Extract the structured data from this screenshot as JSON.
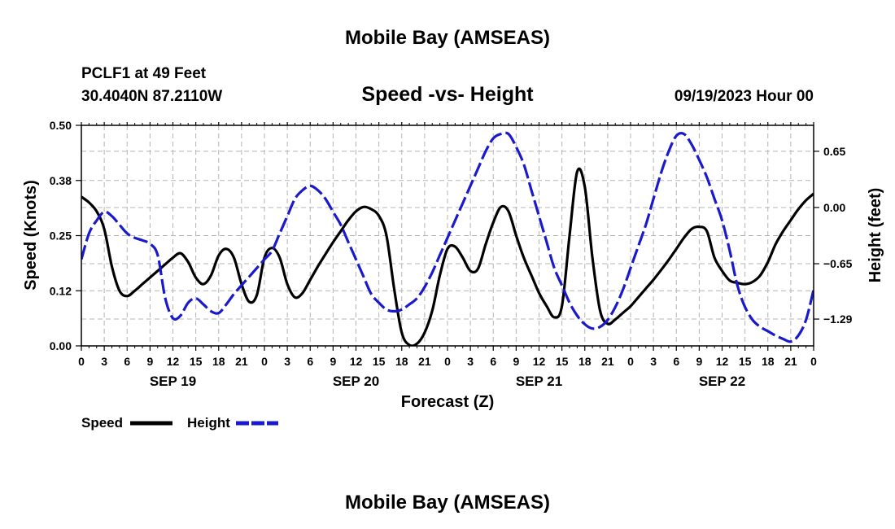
{
  "header": {
    "title": "Mobile Bay (AMSEAS)",
    "station": "PCLF1 at 49 Feet",
    "coords": "30.4040N  87.2110W",
    "chart_title": "Speed -vs- Height",
    "forecast_time": "09/19/2023 Hour 00"
  },
  "footer": {
    "title": "Mobile Bay (AMSEAS)"
  },
  "legend": {
    "speed_label": "Speed",
    "height_label": "Height"
  },
  "colors": {
    "speed": "#000000",
    "height": "#1a1acc",
    "grid": "#b4b4b4"
  },
  "chart_data": {
    "type": "line",
    "title": "Speed -vs- Height",
    "xlabel": "Forecast (Z)",
    "ylabel_left": "Speed (Knots)",
    "ylabel_right": "Height (feet)",
    "xlim": [
      0,
      96
    ],
    "ylim_left": [
      0,
      0.5
    ],
    "ylim_right": [
      -1.6,
      0.95
    ],
    "x_ticks": [
      0,
      3,
      6,
      9,
      12,
      15,
      18,
      21,
      24,
      27,
      30,
      33,
      36,
      39,
      42,
      45,
      48,
      51,
      54,
      57,
      60,
      63,
      66,
      69,
      72,
      75,
      78,
      81,
      84,
      87,
      90,
      93,
      96
    ],
    "x_tick_labels": [
      "0",
      "3",
      "6",
      "9",
      "12",
      "15",
      "18",
      "21",
      "0",
      "3",
      "6",
      "9",
      "12",
      "15",
      "18",
      "21",
      "0",
      "3",
      "6",
      "9",
      "12",
      "15",
      "18",
      "21",
      "0",
      "3",
      "6",
      "9",
      "12",
      "15",
      "18",
      "21",
      "0"
    ],
    "day_labels": [
      {
        "x": 12,
        "label": "SEP 19"
      },
      {
        "x": 36,
        "label": "SEP 20"
      },
      {
        "x": 60,
        "label": "SEP 21"
      },
      {
        "x": 84,
        "label": "SEP 22"
      }
    ],
    "y_left_ticks": [
      0,
      0.125,
      0.25,
      0.375,
      0.5
    ],
    "y_left_labels": [
      "0.00",
      "0.12",
      "0.25",
      "0.38",
      "0.50"
    ],
    "y_right_ticks": [
      0.65,
      0.0,
      -0.65,
      -1.29
    ],
    "y_right_labels": [
      "0.65",
      "0.00",
      "−0.65",
      "−1.29"
    ],
    "grid": true,
    "series": [
      {
        "name": "Speed",
        "axis": "left",
        "style": "solid",
        "x": [
          0,
          1,
          2,
          3,
          4,
          5,
          6,
          7,
          8,
          9,
          10,
          11,
          12,
          13,
          14,
          15,
          16,
          17,
          18,
          19,
          20,
          21,
          22,
          23,
          24,
          25,
          26,
          27,
          28,
          29,
          30,
          31,
          32,
          33,
          34,
          35,
          36,
          37,
          38,
          39,
          40,
          41,
          42,
          43,
          44,
          45,
          46,
          47,
          48,
          49,
          50,
          51,
          52,
          53,
          54,
          55,
          56,
          57,
          58,
          59,
          60,
          61,
          62,
          63,
          64,
          65,
          66,
          67,
          68,
          69,
          70,
          71,
          72,
          73,
          74,
          75,
          76,
          77,
          78,
          79,
          80,
          81,
          82,
          83,
          84,
          85,
          86,
          87,
          88,
          89,
          90,
          91,
          92,
          93,
          94,
          95,
          96
        ],
        "values": [
          0.338,
          0.325,
          0.305,
          0.265,
          0.18,
          0.125,
          0.113,
          0.125,
          0.14,
          0.155,
          0.17,
          0.185,
          0.2,
          0.21,
          0.19,
          0.155,
          0.14,
          0.16,
          0.205,
          0.22,
          0.2,
          0.14,
          0.1,
          0.115,
          0.2,
          0.222,
          0.2,
          0.14,
          0.11,
          0.12,
          0.15,
          0.18,
          0.208,
          0.235,
          0.26,
          0.285,
          0.305,
          0.315,
          0.31,
          0.295,
          0.25,
          0.13,
          0.03,
          0.002,
          0.005,
          0.03,
          0.08,
          0.16,
          0.22,
          0.225,
          0.2,
          0.17,
          0.175,
          0.23,
          0.28,
          0.315,
          0.305,
          0.25,
          0.2,
          0.16,
          0.12,
          0.09,
          0.065,
          0.09,
          0.25,
          0.395,
          0.36,
          0.2,
          0.08,
          0.05,
          0.06,
          0.075,
          0.09,
          0.11,
          0.13,
          0.15,
          0.172,
          0.195,
          0.22,
          0.245,
          0.265,
          0.27,
          0.26,
          0.2,
          0.17,
          0.148,
          0.143,
          0.14,
          0.145,
          0.16,
          0.19,
          0.23,
          0.26,
          0.285,
          0.31,
          0.33,
          0.345
        ]
      },
      {
        "name": "Height",
        "axis": "right",
        "style": "dashed",
        "x": [
          0,
          1,
          2,
          3,
          4,
          5,
          6,
          7,
          8,
          9,
          10,
          11,
          12,
          13,
          14,
          15,
          16,
          17,
          18,
          19,
          20,
          21,
          22,
          23,
          24,
          25,
          26,
          27,
          28,
          29,
          30,
          31,
          32,
          33,
          34,
          35,
          36,
          37,
          38,
          39,
          40,
          41,
          42,
          43,
          44,
          45,
          46,
          47,
          48,
          49,
          50,
          51,
          52,
          53,
          54,
          55,
          56,
          57,
          58,
          59,
          60,
          61,
          62,
          63,
          64,
          65,
          66,
          67,
          68,
          69,
          70,
          71,
          72,
          73,
          74,
          75,
          76,
          77,
          78,
          79,
          80,
          81,
          82,
          83,
          84,
          85,
          86,
          87,
          88,
          89,
          90,
          91,
          92,
          93,
          94,
          95,
          96
        ],
        "values": [
          -0.6,
          -0.3,
          -0.15,
          -0.05,
          -0.1,
          -0.2,
          -0.3,
          -0.35,
          -0.38,
          -0.42,
          -0.55,
          -1.05,
          -1.28,
          -1.25,
          -1.1,
          -1.05,
          -1.12,
          -1.2,
          -1.22,
          -1.12,
          -1.0,
          -0.9,
          -0.8,
          -0.7,
          -0.6,
          -0.5,
          -0.3,
          -0.1,
          0.1,
          0.2,
          0.25,
          0.2,
          0.1,
          -0.05,
          -0.2,
          -0.4,
          -0.6,
          -0.8,
          -1.0,
          -1.1,
          -1.18,
          -1.2,
          -1.18,
          -1.12,
          -1.05,
          -0.92,
          -0.75,
          -0.55,
          -0.35,
          -0.15,
          0.05,
          0.25,
          0.45,
          0.65,
          0.8,
          0.85,
          0.85,
          0.7,
          0.5,
          0.2,
          -0.1,
          -0.4,
          -0.7,
          -0.9,
          -1.1,
          -1.25,
          -1.35,
          -1.4,
          -1.38,
          -1.3,
          -1.15,
          -0.95,
          -0.7,
          -0.45,
          -0.2,
          0.1,
          0.4,
          0.65,
          0.83,
          0.85,
          0.73,
          0.55,
          0.35,
          0.1,
          -0.15,
          -0.5,
          -0.9,
          -1.15,
          -1.3,
          -1.38,
          -1.43,
          -1.48,
          -1.52,
          -1.55,
          -1.48,
          -1.3,
          -0.95
        ]
      }
    ]
  }
}
